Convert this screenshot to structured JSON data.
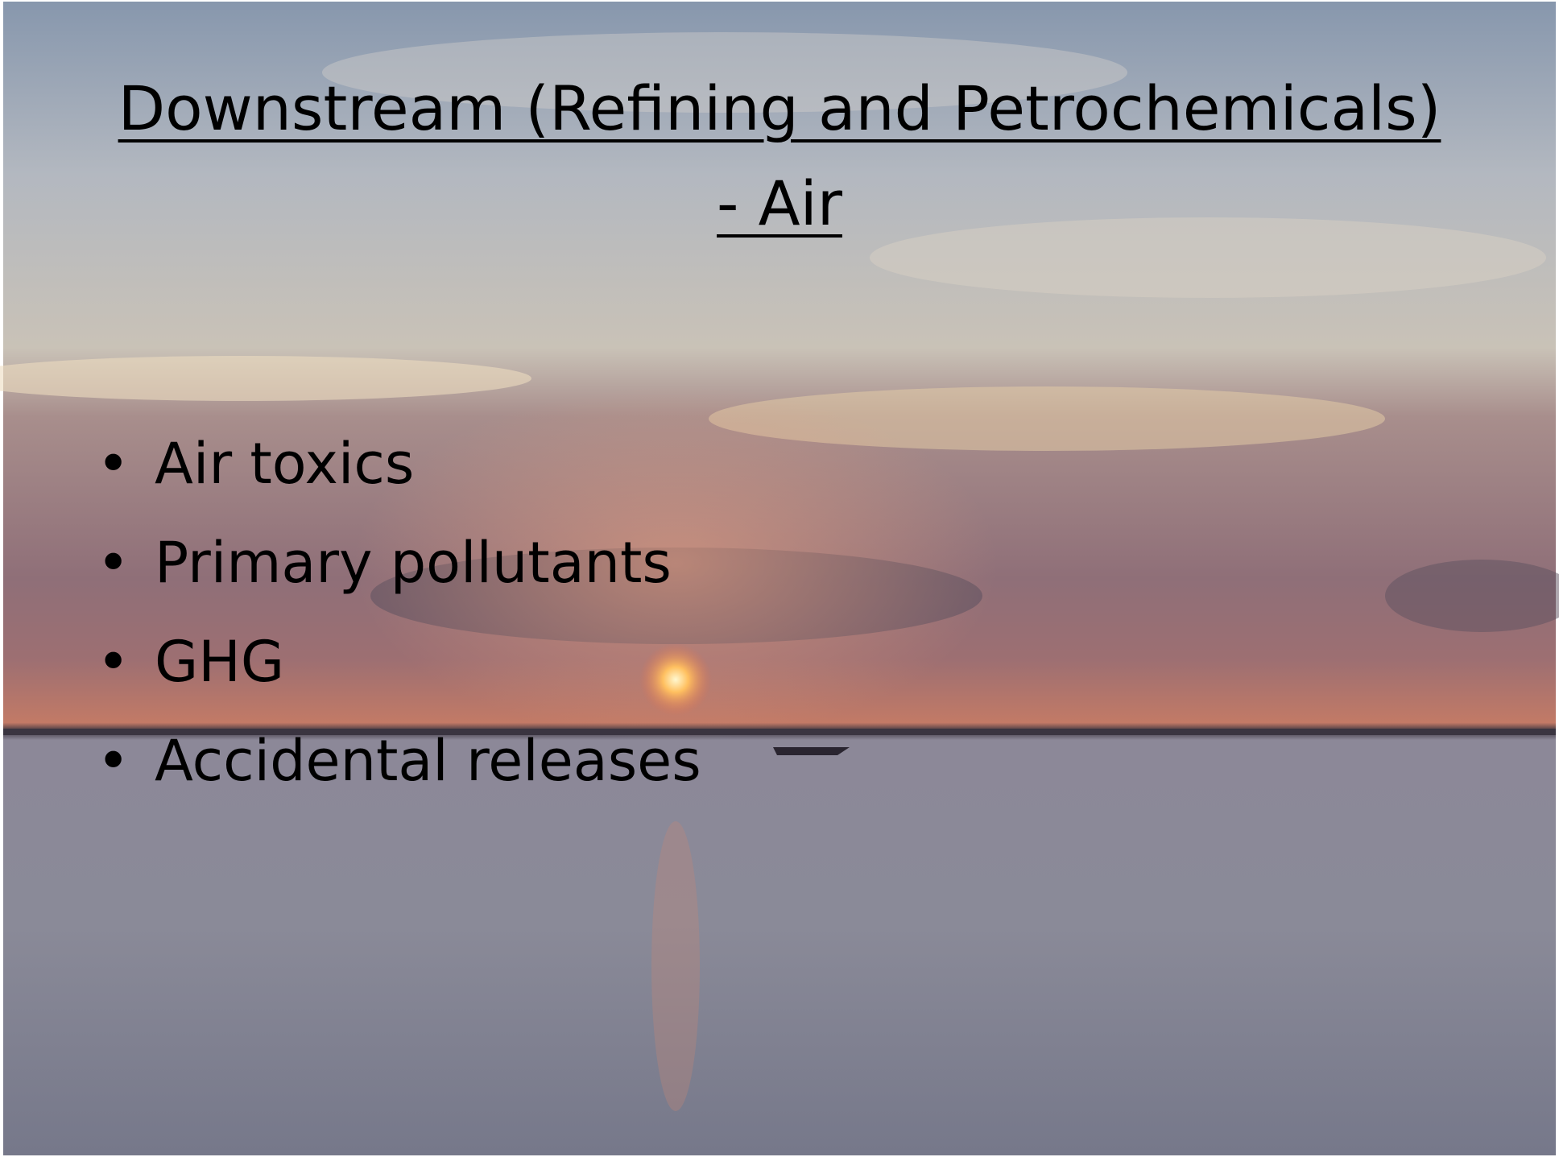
{
  "slide": {
    "title_lines": [
      "Downstream (Refining and Petrochemicals)",
      "- Air"
    ],
    "bullets": [
      "Air toxics",
      "Primary pollutants",
      "GHG",
      "Accidental releases"
    ]
  }
}
